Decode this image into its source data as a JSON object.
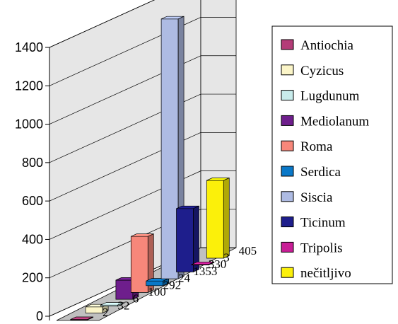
{
  "chart_data": {
    "type": "bar",
    "categories": [
      "Antiochia",
      "Cyzicus",
      "Lugdunum",
      "Mediolanum",
      "Roma",
      "Serdica",
      "Siscia",
      "Ticinum",
      "Tripolis",
      "nečitljivo"
    ],
    "values": [
      2,
      32,
      6,
      100,
      292,
      24,
      1353,
      330,
      3,
      405
    ],
    "data_labels": [
      "2",
      "32",
      "6",
      "100",
      "292",
      "24",
      "1353",
      "330",
      "3",
      "405"
    ],
    "y_ticks": [
      "0",
      "200",
      "400",
      "600",
      "800",
      "1000",
      "1200",
      "1400"
    ],
    "ylim": [
      0,
      1400
    ],
    "legend_position": "right",
    "three_d": true,
    "grid": true,
    "colors": [
      "#b43c78",
      "#fbf5c8",
      "#c8ecec",
      "#6e1e8c",
      "#f7877a",
      "#0a78c8",
      "#aebbe3",
      "#1e1e8c",
      "#c81e96",
      "#fbf00a"
    ]
  }
}
